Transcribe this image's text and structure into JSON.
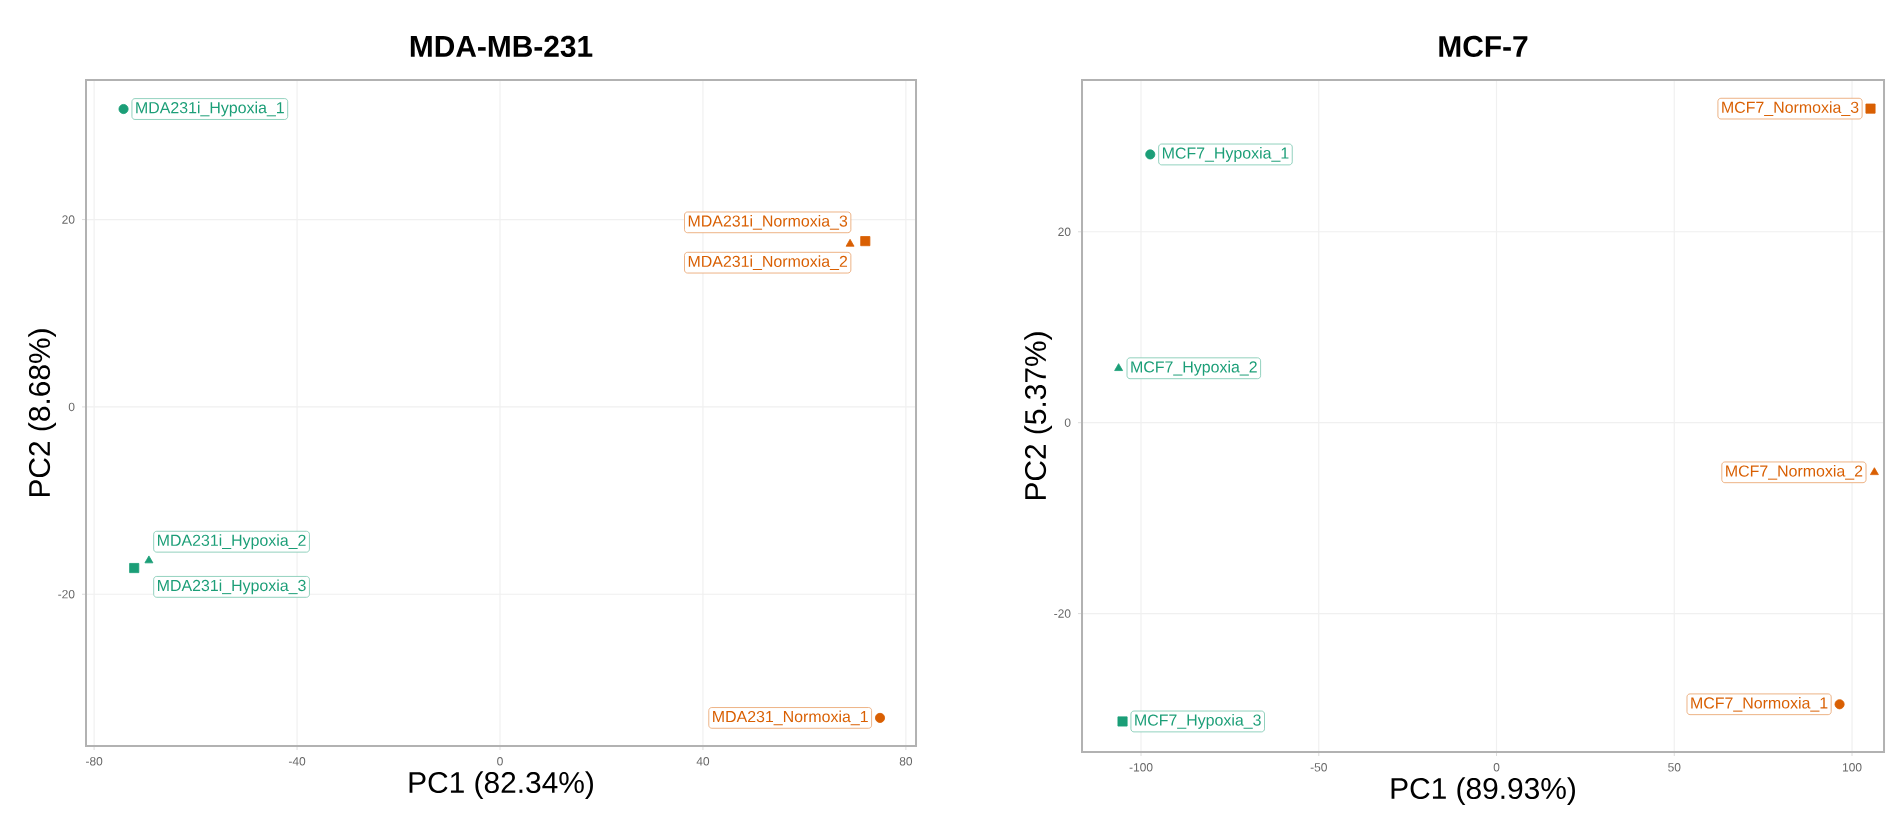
{
  "chart_data": [
    {
      "type": "scatter",
      "title": "MDA-MB-231",
      "xlabel": "PC1 (82.34%)",
      "ylabel": "PC2 (8.68%)",
      "xlim": [
        -81.6,
        82
      ],
      "ylim": [
        -36.2,
        34.9
      ],
      "xticks": [
        -80,
        -40,
        0,
        40,
        80
      ],
      "yticks": [
        -20,
        0,
        20
      ],
      "grid": true,
      "series": [
        {
          "marker": "circle",
          "x": [
            -74.2,
            74.9
          ],
          "values": [
            31.8,
            -33.2
          ],
          "colors": [
            "#1b9e77",
            "#d95f02"
          ]
        },
        {
          "marker": "triangle",
          "x": [
            -69.2,
            69.0
          ],
          "values": [
            -16.4,
            17.4
          ],
          "colors": [
            "#1b9e77",
            "#d95f02"
          ]
        },
        {
          "marker": "square",
          "x": [
            -72.1,
            72.0
          ],
          "values": [
            -17.2,
            17.7
          ],
          "colors": [
            "#1b9e77",
            "#d95f02"
          ]
        }
      ],
      "annotations": [
        {
          "text": "MDA231i_Hypoxia_1",
          "x": -74.2,
          "y": 31.8
        },
        {
          "text": "MDA231i_Hypoxia_2",
          "x": -69.2,
          "y": -16.4
        },
        {
          "text": "MDA231i_Hypoxia_3",
          "x": -72.1,
          "y": -17.2
        },
        {
          "text": "MDA231_Normoxia_1",
          "x": 74.9,
          "y": -33.2
        },
        {
          "text": "MDA231i_Normoxia_2",
          "x": 69.0,
          "y": 17.4
        },
        {
          "text": "MDA231i_Normoxia_3",
          "x": 72.0,
          "y": 17.7
        }
      ]
    },
    {
      "type": "scatter",
      "title": "MCF-7",
      "xlabel": "PC1 (89.93%)",
      "ylabel": "PC2 (5.37%)",
      "xlim": [
        -116.6,
        109
      ],
      "ylim": [
        -34.5,
        35.9
      ],
      "xticks": [
        -100,
        -50,
        0,
        50,
        100
      ],
      "yticks": [
        -20,
        0,
        20
      ],
      "grid": true,
      "series": [
        {
          "marker": "circle",
          "x": [
            -97.4,
            96.5
          ],
          "values": [
            28.1,
            -29.5
          ],
          "colors": [
            "#1b9e77",
            "#d95f02"
          ]
        },
        {
          "marker": "triangle",
          "x": [
            -106.3,
            106.3
          ],
          "values": [
            5.7,
            -5.2
          ],
          "colors": [
            "#1b9e77",
            "#d95f02"
          ]
        },
        {
          "marker": "square",
          "x": [
            -105.2,
            105.2
          ],
          "values": [
            -31.3,
            32.9
          ],
          "colors": [
            "#1b9e77",
            "#d95f02"
          ]
        }
      ],
      "annotations": [
        {
          "text": "MCF7_Hypoxia_1",
          "x": -97.4,
          "y": 28.1
        },
        {
          "text": "MCF7_Hypoxia_2",
          "x": -106.3,
          "y": 5.7
        },
        {
          "text": "MCF7_Hypoxia_3",
          "x": -105.2,
          "y": -31.3
        },
        {
          "text": "MCF7_Normoxia_1",
          "x": 96.5,
          "y": -29.5
        },
        {
          "text": "MCF7_Normoxia_2",
          "x": 106.3,
          "y": -5.2
        },
        {
          "text": "MCF7_Normoxia_3",
          "x": 105.2,
          "y": 32.9
        }
      ]
    }
  ]
}
